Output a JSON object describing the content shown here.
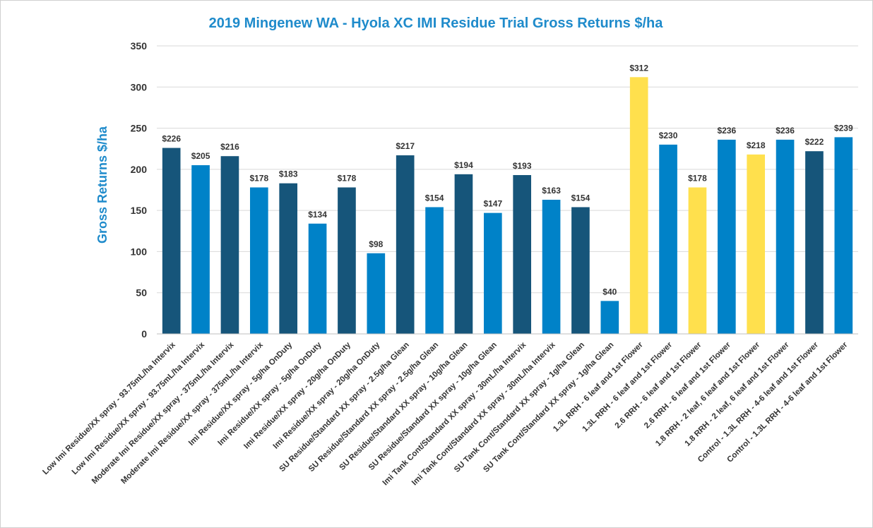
{
  "chart_data": {
    "type": "bar",
    "title": "2019 Mingenew WA - Hyola XC IMI Residue Trial Gross Returns $/ha",
    "ylabel": "Gross Returns $/ha",
    "xlabel": "",
    "ylim": [
      0,
      350
    ],
    "yticks": [
      0,
      50,
      100,
      150,
      200,
      250,
      300,
      350
    ],
    "grid": true,
    "legend": "none",
    "categories": [
      "Low Imi Residue/XX spray - 93.75mL/ha Intervix",
      "Low Imi Residue/XX spray - 93.75mL/ha Intervix",
      "Moderate Imi Residue/XX spray - 375mL/ha Intervix",
      "Moderate Imi Residue/XX spray - 375mL/ha Intervix",
      "Imi Residue/XX spray - 5g/ha OnDuty",
      "Imi Residue/XX spray - 5g/ha OnDuty",
      "Imi Residue/XX spray - 20g/ha OnDuty",
      "Imi Residue/XX spray - 20g/ha OnDuty",
      "SU Residue/Standard XX spray - 2.5g/ha Glean",
      "SU Residue/Standard XX spray - 2.5g/ha Glean",
      "SU Residue/Standard XX spray - 10g/ha Glean",
      "SU Residue/Standard XX spray - 10g/ha Glean",
      "Imi Tank Cont/Standard XX spray - 30mL/ha Intervix",
      "Imi Tank Cont/Standard XX spray - 30mL/ha Intervix",
      "SU Tank Cont/Standard XX spray - 1g/ha Glean",
      "SU Tank Cont/Standard XX spray - 1g/ha Glean",
      "1.3L RRH - 6 leaf and 1st Flower",
      "1.3L RRH - 6 leaf and 1st Flower",
      "2.6 RRH - 6 leaf and 1st Flower",
      "2.6 RRH - 6 leaf and 1st Flower",
      "1.8 RRH - 2 leaf, 6 leaf and 1st Flower",
      "1.8 RRH - 2 leaf, 6 leaf and 1st Flower",
      "Control - 1.3L RRH - 4-6 leaf and 1st Flower",
      "Control - 1.3L RRH - 4-6 leaf and 1st Flower"
    ],
    "values": [
      226,
      205,
      216,
      178,
      183,
      134,
      178,
      98,
      217,
      154,
      194,
      147,
      193,
      163,
      154,
      40,
      312,
      230,
      178,
      236,
      218,
      236,
      222,
      239
    ],
    "data_labels": [
      "$226",
      "$205",
      "$216",
      "$178",
      "$183",
      "$134",
      "$178",
      "$98",
      "$217",
      "$154",
      "$194",
      "$147",
      "$193",
      "$163",
      "$154",
      "$40",
      "$312",
      "$230",
      "$178",
      "$236",
      "$218",
      "$236",
      "$222",
      "$239"
    ],
    "bar_colors": [
      "#16557A",
      "#0082C8",
      "#16557A",
      "#0082C8",
      "#16557A",
      "#0082C8",
      "#16557A",
      "#0082C8",
      "#16557A",
      "#0082C8",
      "#16557A",
      "#0082C8",
      "#16557A",
      "#0082C8",
      "#16557A",
      "#0082C8",
      "#FFE04D",
      "#0082C8",
      "#FFE04D",
      "#0082C8",
      "#FFE04D",
      "#0082C8",
      "#16557A",
      "#0082C8"
    ]
  }
}
